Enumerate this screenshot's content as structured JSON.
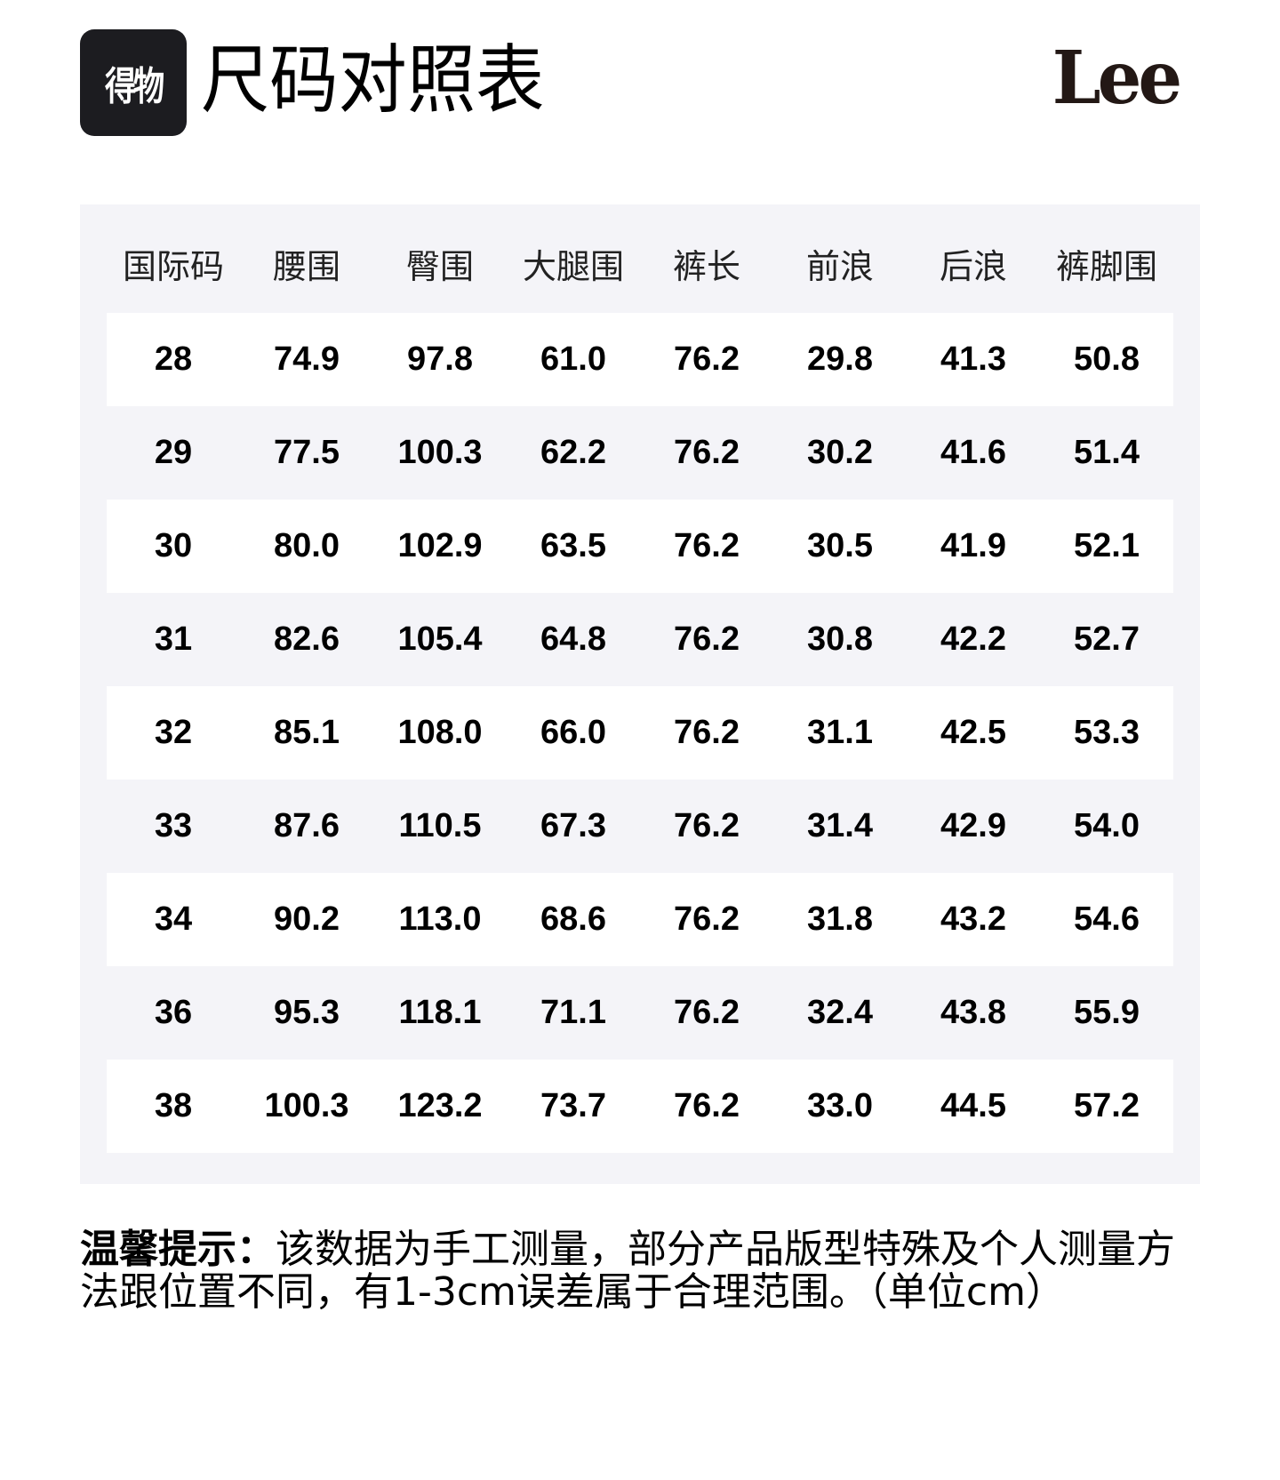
{
  "header": {
    "brand_badge": "得物",
    "title": "尺码对照表",
    "logo": "Lee"
  },
  "table": {
    "columns": [
      "国际码",
      "腰围",
      "臀围",
      "大腿围",
      "裤长",
      "前浪",
      "后浪",
      "裤脚围"
    ],
    "rows": [
      [
        "28",
        "74.9",
        "97.8",
        "61.0",
        "76.2",
        "29.8",
        "41.3",
        "50.8"
      ],
      [
        "29",
        "77.5",
        "100.3",
        "62.2",
        "76.2",
        "30.2",
        "41.6",
        "51.4"
      ],
      [
        "30",
        "80.0",
        "102.9",
        "63.5",
        "76.2",
        "30.5",
        "41.9",
        "52.1"
      ],
      [
        "31",
        "82.6",
        "105.4",
        "64.8",
        "76.2",
        "30.8",
        "42.2",
        "52.7"
      ],
      [
        "32",
        "85.1",
        "108.0",
        "66.0",
        "76.2",
        "31.1",
        "42.5",
        "53.3"
      ],
      [
        "33",
        "87.6",
        "110.5",
        "67.3",
        "76.2",
        "31.4",
        "42.9",
        "54.0"
      ],
      [
        "34",
        "90.2",
        "113.0",
        "68.6",
        "76.2",
        "31.8",
        "43.2",
        "54.6"
      ],
      [
        "36",
        "95.3",
        "118.1",
        "71.1",
        "76.2",
        "32.4",
        "43.8",
        "55.9"
      ],
      [
        "38",
        "100.3",
        "123.2",
        "73.7",
        "76.2",
        "33.0",
        "44.5",
        "57.2"
      ]
    ]
  },
  "note": {
    "label": "温馨提示：",
    "text": "该数据为手工测量，部分产品版型特殊及个人测量方法跟位置不同，有1-3cm误差属于合理范围。（单位cm）"
  }
}
